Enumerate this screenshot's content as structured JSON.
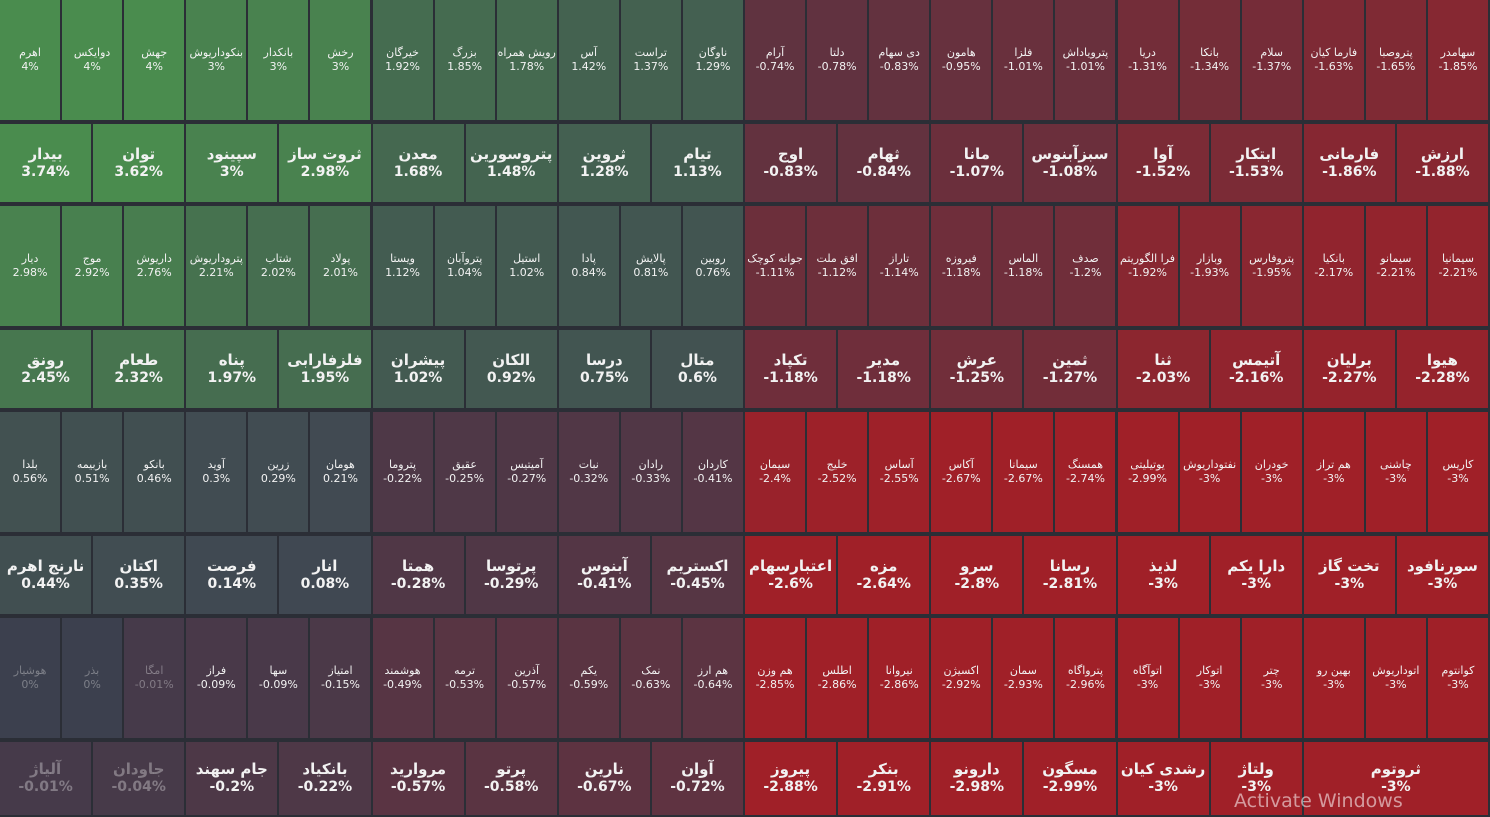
{
  "rows": [
    [
      [
        "اهرم",
        4,
        "4%"
      ],
      [
        "دوایکس",
        4,
        "4%"
      ],
      [
        "جهش",
        4,
        "4%"
      ],
      [
        "بنکوداریوش",
        3,
        "3%"
      ],
      [
        "بانکدار",
        3,
        "3%"
      ],
      [
        "رخش",
        3,
        "3%"
      ],
      [
        "خیرگان",
        1.92,
        "1.92%"
      ],
      [
        "بزرگ",
        1.85,
        "1.85%"
      ],
      [
        "رویش همراه",
        1.78,
        "1.78%"
      ],
      [
        "آس",
        1.42,
        "1.42%"
      ],
      [
        "تراست",
        1.37,
        "1.37%"
      ],
      [
        "ناوگان",
        1.29,
        "1.29%"
      ],
      [
        "آرام",
        -0.74,
        "-0.74%"
      ],
      [
        "دلتا",
        -0.78,
        "-0.78%"
      ],
      [
        "دی سهام",
        -0.83,
        "-0.83%"
      ],
      [
        "هامون",
        -0.95,
        "-0.95%"
      ],
      [
        "فلزا",
        -1.01,
        "-1.01%"
      ],
      [
        "پترویاداش",
        -1.01,
        "-1.01%"
      ],
      [
        "دریا",
        -1.31,
        "-1.31%"
      ],
      [
        "بانکا",
        -1.34,
        "-1.34%"
      ],
      [
        "سلام",
        -1.37,
        "-1.37%"
      ],
      [
        "فارما کیان",
        -1.63,
        "-1.63%"
      ],
      [
        "پتروصبا",
        -1.65,
        "-1.65%"
      ],
      [
        "سهامدر",
        -1.85,
        "-1.85%"
      ]
    ],
    [
      [
        "بیدار",
        3.74,
        "3.74%"
      ],
      [
        "توان",
        3.62,
        "3.62%"
      ],
      [
        "سپینود",
        3,
        "3%"
      ],
      [
        "ثروت ساز",
        2.98,
        "2.98%"
      ],
      [
        "معدن",
        1.68,
        "1.68%"
      ],
      [
        "پتروسورین",
        1.48,
        "1.48%"
      ],
      [
        "ثروین",
        1.28,
        "1.28%"
      ],
      [
        "تیام",
        1.13,
        "1.13%"
      ],
      [
        "اوج",
        -0.83,
        "-0.83%"
      ],
      [
        "ثهام",
        -0.84,
        "-0.84%"
      ],
      [
        "مانا",
        -1.07,
        "-1.07%"
      ],
      [
        "سبزآبنوس",
        -1.08,
        "-1.08%"
      ],
      [
        "آوا",
        -1.52,
        "-1.52%"
      ],
      [
        "ابتکار",
        -1.53,
        "-1.53%"
      ],
      [
        "فارمانی",
        -1.86,
        "-1.86%"
      ],
      [
        "ارزش",
        -1.88,
        "-1.88%"
      ]
    ],
    [
      [
        "دیار",
        2.98,
        "2.98%"
      ],
      [
        "موج",
        2.92,
        "2.92%"
      ],
      [
        "داریوش",
        2.76,
        "2.76%"
      ],
      [
        "پتروداریوش",
        2.21,
        "2.21%"
      ],
      [
        "شتاب",
        2.02,
        "2.02%"
      ],
      [
        "پولاد",
        2.01,
        "2.01%"
      ],
      [
        "ویستا",
        1.12,
        "1.12%"
      ],
      [
        "پتروآبان",
        1.04,
        "1.04%"
      ],
      [
        "استیل",
        1.02,
        "1.02%"
      ],
      [
        "پادا",
        0.84,
        "0.84%"
      ],
      [
        "پالایش",
        0.81,
        "0.81%"
      ],
      [
        "روبین",
        0.76,
        "0.76%"
      ],
      [
        "جوانه کوچک",
        -1.11,
        "-1.11%"
      ],
      [
        "افق ملت",
        -1.12,
        "-1.12%"
      ],
      [
        "تاراز",
        -1.14,
        "-1.14%"
      ],
      [
        "فیروزه",
        -1.18,
        "-1.18%"
      ],
      [
        "الماس",
        -1.18,
        "-1.18%"
      ],
      [
        "صدف",
        -1.2,
        "-1.2%"
      ],
      [
        "فرا الگوریتم",
        -1.92,
        "-1.92%"
      ],
      [
        "وبازار",
        -1.93,
        "-1.93%"
      ],
      [
        "پتروفارس",
        -1.95,
        "-1.95%"
      ],
      [
        "بانکیا",
        -2.17,
        "-2.17%"
      ],
      [
        "سیمانو",
        -2.21,
        "-2.21%"
      ],
      [
        "سیمانیا",
        -2.21,
        "-2.21%"
      ]
    ],
    [
      [
        "رونق",
        2.45,
        "2.45%"
      ],
      [
        "طعام",
        2.32,
        "2.32%"
      ],
      [
        "پناه",
        1.97,
        "1.97%"
      ],
      [
        "فلزفارابی",
        1.95,
        "1.95%"
      ],
      [
        "پیشران",
        1.02,
        "1.02%"
      ],
      [
        "الکان",
        0.92,
        "0.92%"
      ],
      [
        "درسا",
        0.75,
        "0.75%"
      ],
      [
        "متال",
        0.6,
        "0.6%"
      ],
      [
        "تکپاد",
        -1.18,
        "-1.18%"
      ],
      [
        "مدیر",
        -1.18,
        "-1.18%"
      ],
      [
        "عرش",
        -1.25,
        "-1.25%"
      ],
      [
        "ثمین",
        -1.27,
        "-1.27%"
      ],
      [
        "ثنا",
        -2.03,
        "-2.03%"
      ],
      [
        "آتیمس",
        -2.16,
        "-2.16%"
      ],
      [
        "برلیان",
        -2.27,
        "-2.27%"
      ],
      [
        "هیوا",
        -2.28,
        "-2.28%"
      ]
    ],
    [
      [
        "بلدا",
        0.56,
        "0.56%"
      ],
      [
        "بازبیمه",
        0.51,
        "0.51%"
      ],
      [
        "بانکو",
        0.46,
        "0.46%"
      ],
      [
        "آوید",
        0.3,
        "0.3%"
      ],
      [
        "زرین",
        0.29,
        "0.29%"
      ],
      [
        "هومان",
        0.21,
        "0.21%"
      ],
      [
        "پتروما",
        -0.22,
        "-0.22%"
      ],
      [
        "عقیق",
        -0.25,
        "-0.25%"
      ],
      [
        "آمیتیس",
        -0.27,
        "-0.27%"
      ],
      [
        "نبات",
        -0.32,
        "-0.32%"
      ],
      [
        "رادان",
        -0.33,
        "-0.33%"
      ],
      [
        "کاردان",
        -0.41,
        "-0.41%"
      ],
      [
        "سیمان",
        -2.4,
        "-2.4%"
      ],
      [
        "خلیج",
        -2.52,
        "-2.52%"
      ],
      [
        "آساس",
        -2.55,
        "-2.55%"
      ],
      [
        "آکاس",
        -2.67,
        "-2.67%"
      ],
      [
        "سیمانا",
        -2.67,
        "-2.67%"
      ],
      [
        "همسنگ",
        -2.74,
        "-2.74%"
      ],
      [
        "یوتیلیتی",
        -2.99,
        "-2.99%"
      ],
      [
        "نفتوداریوش",
        -3,
        "-3%"
      ],
      [
        "خودران",
        -3,
        "-3%"
      ],
      [
        "هم تراز",
        -3,
        "-3%"
      ],
      [
        "چاشنی",
        -3,
        "-3%"
      ],
      [
        "کاریس",
        -3,
        "-3%"
      ]
    ],
    [
      [
        "نارنج اهرم",
        0.44,
        "0.44%"
      ],
      [
        "اکتان",
        0.35,
        "0.35%"
      ],
      [
        "فرصت",
        0.14,
        "0.14%"
      ],
      [
        "انار",
        0.08,
        "0.08%"
      ],
      [
        "همتا",
        -0.28,
        "-0.28%"
      ],
      [
        "پرتوسا",
        -0.29,
        "-0.29%"
      ],
      [
        "آبنوس",
        -0.41,
        "-0.41%"
      ],
      [
        "اکستریم",
        -0.45,
        "-0.45%"
      ],
      [
        "اعتبارسهام",
        -2.6,
        "-2.6%"
      ],
      [
        "مزه",
        -2.64,
        "-2.64%"
      ],
      [
        "سرو",
        -2.8,
        "-2.8%"
      ],
      [
        "رسانا",
        -2.81,
        "-2.81%"
      ],
      [
        "لذیذ",
        -3,
        "-3%"
      ],
      [
        "دارا یکم",
        -3,
        "-3%"
      ],
      [
        "تخت گاز",
        -3,
        "-3%"
      ],
      [
        "سورنافود",
        -3,
        "-3%"
      ]
    ],
    [
      [
        "هوشیار",
        0,
        "0%"
      ],
      [
        "بذر",
        0,
        "0%"
      ],
      [
        "امگا",
        -0.01,
        "-0.01%"
      ],
      [
        "فراز",
        -0.09,
        "-0.09%"
      ],
      [
        "سها",
        -0.09,
        "-0.09%"
      ],
      [
        "امتیاز",
        -0.15,
        "-0.15%"
      ],
      [
        "هوشمند",
        -0.49,
        "-0.49%"
      ],
      [
        "ترمه",
        -0.53,
        "-0.53%"
      ],
      [
        "آذرین",
        -0.57,
        "-0.57%"
      ],
      [
        "یکم",
        -0.59,
        "-0.59%"
      ],
      [
        "نمک",
        -0.63,
        "-0.63%"
      ],
      [
        "هم ارز",
        -0.64,
        "-0.64%"
      ],
      [
        "هم وزن",
        -2.85,
        "-2.85%"
      ],
      [
        "اطلس",
        -2.86,
        "-2.86%"
      ],
      [
        "نیروانا",
        -2.86,
        "-2.86%"
      ],
      [
        "اکسیژن",
        -2.92,
        "-2.92%"
      ],
      [
        "سمان",
        -2.93,
        "-2.93%"
      ],
      [
        "پترواگاه",
        -2.96,
        "-2.96%"
      ],
      [
        "اتوآگاه",
        -3,
        "-3%"
      ],
      [
        "اتوکار",
        -3,
        "-3%"
      ],
      [
        "چتر",
        -3,
        "-3%"
      ],
      [
        "بهین رو",
        -3,
        "-3%"
      ],
      [
        "اتوداریوش",
        -3,
        "-3%"
      ],
      [
        "کوانتوم",
        -3,
        "-3%"
      ]
    ],
    [
      [
        "آلیاژ",
        -0.01,
        "-0.01%"
      ],
      [
        "جاودان",
        -0.04,
        "-0.04%"
      ],
      [
        "جام سهند",
        -0.2,
        "-0.2%"
      ],
      [
        "بانکیاد",
        -0.22,
        "-0.22%"
      ],
      [
        "مروارید",
        -0.57,
        "-0.57%"
      ],
      [
        "پرتو",
        -0.58,
        "-0.58%"
      ],
      [
        "نارین",
        -0.67,
        "-0.67%"
      ],
      [
        "آوان",
        -0.72,
        "-0.72%"
      ],
      [
        "پیروز",
        -2.88,
        "-2.88%"
      ],
      [
        "بنکر",
        -2.91,
        "-2.91%"
      ],
      [
        "دارونو",
        -2.98,
        "-2.98%"
      ],
      [
        "مسگون",
        -2.99,
        "-2.99%"
      ],
      [
        "رشدی کیان",
        -3,
        "-3%"
      ],
      [
        "ولتاژ",
        -3,
        "-3%"
      ],
      [
        "ثروتوم",
        -3,
        "-3%"
      ]
    ]
  ],
  "overlay": "Activate Windows"
}
